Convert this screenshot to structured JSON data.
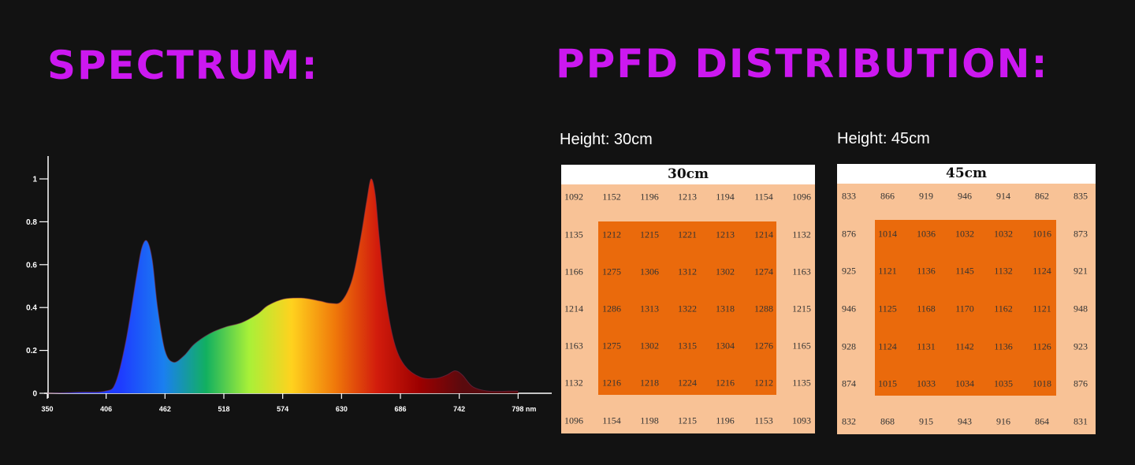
{
  "titles": {
    "spectrum": "SPECTRUM:",
    "ppfd": "PPFD DISTRIBUTION:"
  },
  "colors": {
    "title": "#cc18f0",
    "panel_outer": "#f8c296",
    "panel_inner": "#ea6a0c"
  },
  "chart_data": [
    {
      "type": "area",
      "x_ticks": [
        "350",
        "406",
        "462",
        "518",
        "574",
        "630",
        "686",
        "742",
        "798 nm"
      ],
      "y_ticks": [
        "0",
        "0.2",
        "0.4",
        "0.6",
        "0.8",
        "1"
      ],
      "xlim": [
        350,
        800
      ],
      "ylim": [
        0,
        1.05
      ],
      "x": [
        350,
        380,
        405,
        415,
        425,
        435,
        440,
        445,
        450,
        455,
        462,
        470,
        480,
        490,
        505,
        520,
        535,
        550,
        560,
        575,
        590,
        600,
        610,
        620,
        630,
        640,
        648,
        654,
        658,
        662,
        666,
        672,
        680,
        690,
        705,
        720,
        730,
        738,
        745,
        755,
        770,
        790,
        798
      ],
      "y": [
        0.0,
        0.005,
        0.01,
        0.05,
        0.25,
        0.55,
        0.68,
        0.71,
        0.62,
        0.4,
        0.2,
        0.145,
        0.175,
        0.23,
        0.28,
        0.31,
        0.33,
        0.37,
        0.41,
        0.44,
        0.445,
        0.44,
        0.43,
        0.42,
        0.43,
        0.53,
        0.72,
        0.9,
        1.0,
        0.93,
        0.72,
        0.45,
        0.24,
        0.13,
        0.075,
        0.07,
        0.085,
        0.105,
        0.085,
        0.03,
        0.01,
        0.01,
        0.01
      ],
      "gradient_colors": [
        "#1e3cff",
        "#1a7ff0",
        "#12b060",
        "#a8f038",
        "#ffd21e",
        "#f07a0a",
        "#d21c0c",
        "#9c0000",
        "#5a0a0e"
      ]
    },
    {
      "type": "heatmap",
      "title": "30cm",
      "rows": [
        [
          "1092",
          "1152",
          "1196",
          "1213",
          "1194",
          "1154",
          "1096"
        ],
        [
          "1135",
          "1212",
          "1215",
          "1221",
          "1213",
          "1214",
          "1132"
        ],
        [
          "1166",
          "1275",
          "1306",
          "1312",
          "1302",
          "1274",
          "1163"
        ],
        [
          "1214",
          "1286",
          "1313",
          "1322",
          "1318",
          "1288",
          "1215"
        ],
        [
          "1163",
          "1275",
          "1302",
          "1315",
          "1304",
          "1276",
          "1165"
        ],
        [
          "1132",
          "1216",
          "1218",
          "1224",
          "1216",
          "1212",
          "1135"
        ],
        [
          "1096",
          "1154",
          "1198",
          "1215",
          "1196",
          "1153",
          "1093"
        ]
      ]
    },
    {
      "type": "heatmap",
      "title": "45cm",
      "rows": [
        [
          "833",
          "866",
          "919",
          "946",
          "914",
          "862",
          "835"
        ],
        [
          "876",
          "1014",
          "1036",
          "1032",
          "1032",
          "1016",
          "873"
        ],
        [
          "925",
          "1121",
          "1136",
          "1145",
          "1132",
          "1124",
          "921"
        ],
        [
          "946",
          "1125",
          "1168",
          "1170",
          "1162",
          "1121",
          "948"
        ],
        [
          "928",
          "1124",
          "1131",
          "1142",
          "1136",
          "1126",
          "923"
        ],
        [
          "874",
          "1015",
          "1033",
          "1034",
          "1035",
          "1018",
          "876"
        ],
        [
          "832",
          "868",
          "915",
          "943",
          "916",
          "864",
          "831"
        ]
      ]
    }
  ],
  "panels": {
    "left_label": "Height: 30cm",
    "right_label": "Height: 45cm"
  }
}
